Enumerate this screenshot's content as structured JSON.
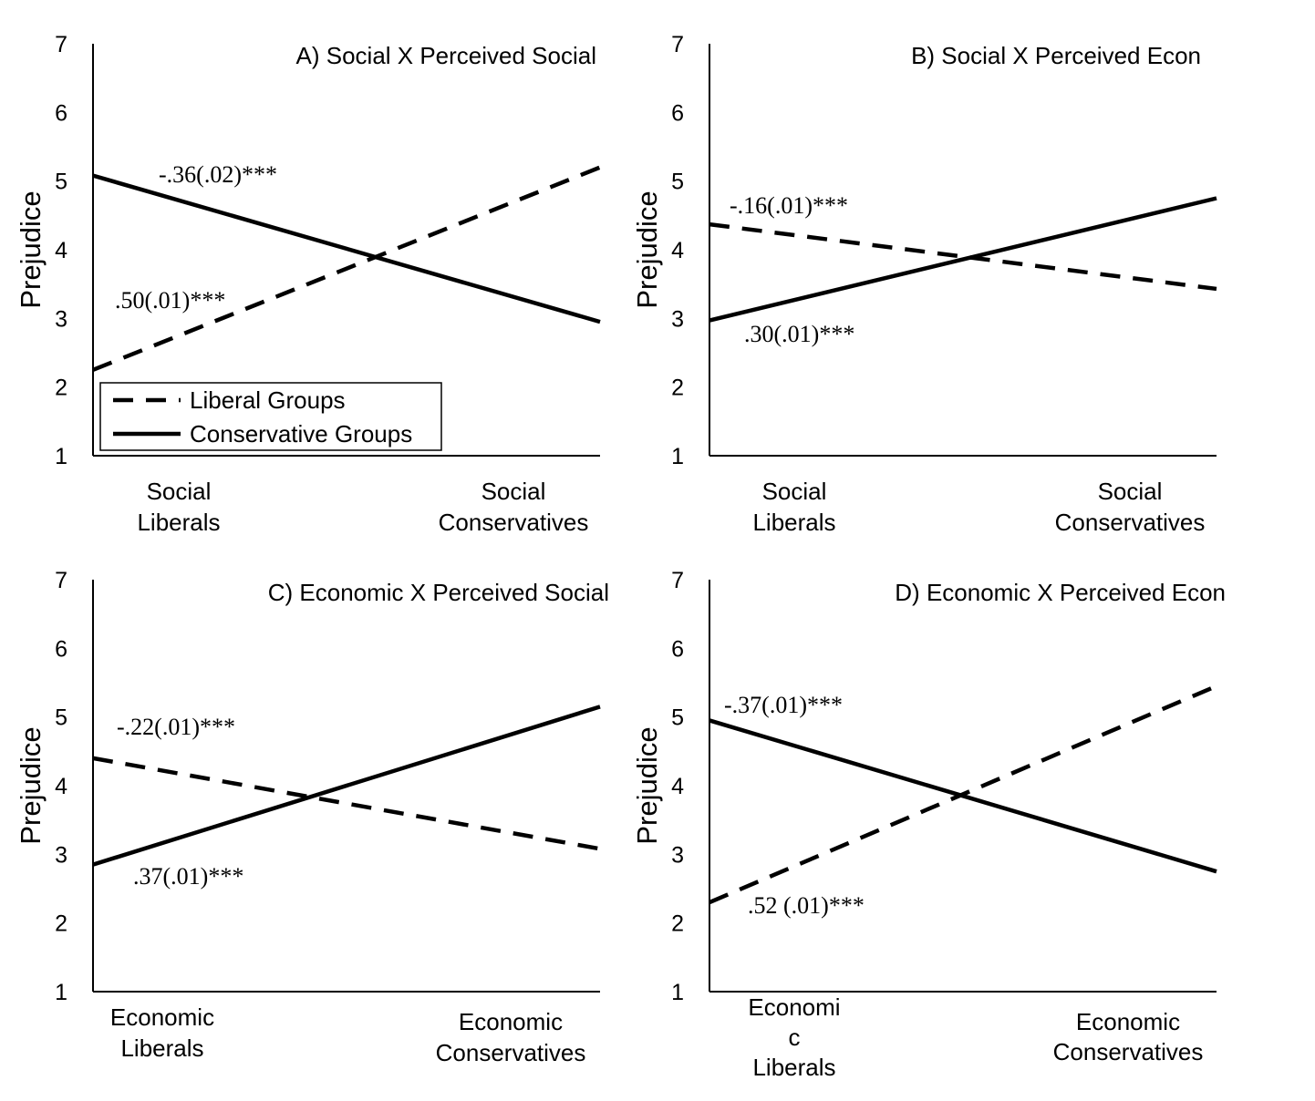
{
  "chart_data": [
    {
      "type": "line",
      "title": "A) Social X Perceived Social",
      "ylabel": "Prejudice",
      "ylim": [
        1,
        7
      ],
      "yticks": [
        "1",
        "2",
        "3",
        "4",
        "5",
        "6",
        "7"
      ],
      "categories": [
        [
          "Social",
          "Liberals"
        ],
        [
          "Social",
          "Conservatives"
        ]
      ],
      "series": [
        {
          "name": "Liberal Groups",
          "style": "dashed",
          "values": [
            2.25,
            5.2
          ]
        },
        {
          "name": "Conservative Groups",
          "style": "solid",
          "values": [
            5.08,
            2.95
          ]
        }
      ],
      "annotations": [
        {
          "text": "-.36(.02)***",
          "series": "Conservative Groups"
        },
        {
          "text": ".50(.01)***",
          "series": "Liberal Groups"
        }
      ],
      "legend": {
        "position": "bottom-left",
        "entries": [
          "Liberal Groups",
          "Conservative Groups"
        ]
      },
      "grid": false
    },
    {
      "type": "line",
      "title": "B) Social X Perceived Econ",
      "ylabel": "Prejudice",
      "ylim": [
        1,
        7
      ],
      "yticks": [
        "1",
        "2",
        "3",
        "4",
        "5",
        "6",
        "7"
      ],
      "categories": [
        [
          "Social",
          "Liberals"
        ],
        [
          "Social",
          "Conservatives"
        ]
      ],
      "series": [
        {
          "name": "Liberal Groups",
          "style": "dashed",
          "values": [
            4.37,
            3.43
          ]
        },
        {
          "name": "Conservative Groups",
          "style": "solid",
          "values": [
            2.97,
            4.75
          ]
        }
      ],
      "annotations": [
        {
          "text": "-.16(.01)***",
          "series": "Liberal Groups"
        },
        {
          "text": ".30(.01)***",
          "series": "Conservative Groups"
        }
      ],
      "grid": false
    },
    {
      "type": "line",
      "title": "C) Economic X Perceived Social",
      "ylabel": "Prejudice",
      "ylim": [
        1,
        7
      ],
      "yticks": [
        "1",
        "2",
        "3",
        "4",
        "5",
        "6",
        "7"
      ],
      "categories": [
        [
          "Economic",
          "Liberals"
        ],
        [
          "Economic",
          "Conservatives"
        ]
      ],
      "series": [
        {
          "name": "Liberal Groups",
          "style": "dashed",
          "values": [
            4.4,
            3.08
          ]
        },
        {
          "name": "Conservative Groups",
          "style": "solid",
          "values": [
            2.85,
            5.15
          ]
        }
      ],
      "annotations": [
        {
          "text": "-.22(.01)***",
          "series": "Liberal Groups"
        },
        {
          "text": ".37(.01)***",
          "series": "Conservative Groups"
        }
      ],
      "grid": false
    },
    {
      "type": "line",
      "title": "D) Economic X Perceived Econ",
      "ylabel": "Prejudice",
      "ylim": [
        1,
        7
      ],
      "yticks": [
        "1",
        "2",
        "3",
        "4",
        "5",
        "6",
        "7"
      ],
      "categories": [
        [
          "Economi",
          "c",
          "Liberals"
        ],
        [
          "Economic",
          "Conservatives"
        ]
      ],
      "series": [
        {
          "name": "Liberal Groups",
          "style": "dashed",
          "values": [
            2.3,
            5.45
          ]
        },
        {
          "name": "Conservative Groups",
          "style": "solid",
          "values": [
            4.95,
            2.75
          ]
        }
      ],
      "annotations": [
        {
          "text": "-.37(.01)***",
          "series": "Conservative Groups"
        },
        {
          "text": ".52 (.01)***",
          "series": "Liberal Groups"
        }
      ],
      "grid": false
    }
  ]
}
